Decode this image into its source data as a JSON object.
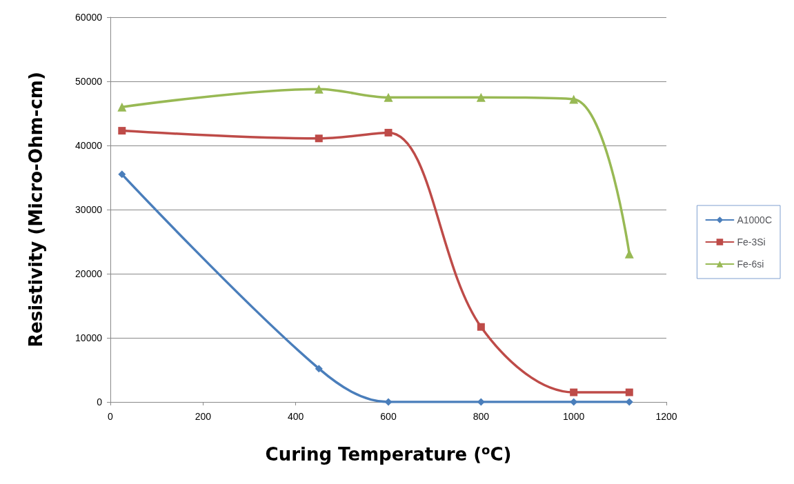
{
  "chart_data": {
    "type": "line",
    "xlabel": "Curing Temperature ($^{o}$C)",
    "ylabel": "Resistivity (Micro-Ohm-cm)",
    "xlim": [
      0,
      1200
    ],
    "xticks": [
      0,
      200,
      400,
      600,
      800,
      1000,
      1200
    ],
    "ylim": [
      0,
      60000
    ],
    "yticks": [
      0,
      10000,
      20000,
      30000,
      40000,
      50000,
      60000
    ],
    "grid": "y",
    "legend": "right",
    "line_style": "solid",
    "series": [
      {
        "name": "A1000C",
        "color": "#4a7ebb",
        "marker": "diamond",
        "x": [
          25,
          450,
          600,
          800,
          1000,
          1120
        ],
        "values": [
          35500,
          5200,
          0,
          0,
          0,
          0
        ]
      },
      {
        "name": "Fe-3Si",
        "color": "#be4b48",
        "marker": "square",
        "x": [
          25,
          450,
          600,
          800,
          1000,
          1120
        ],
        "values": [
          42300,
          41100,
          42000,
          11700,
          1500,
          1500
        ]
      },
      {
        "name": "Fe-6si",
        "color": "#98b954",
        "marker": "triangle",
        "x": [
          25,
          450,
          600,
          800,
          1000,
          1120
        ],
        "values": [
          46000,
          48800,
          47500,
          47500,
          47200,
          23100
        ]
      }
    ]
  }
}
